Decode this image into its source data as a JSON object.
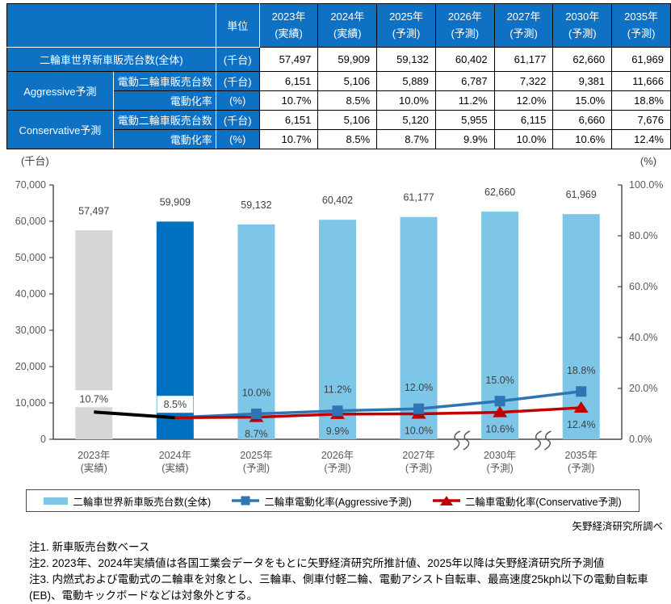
{
  "table": {
    "unit_header": "単位",
    "columns": [
      {
        "year": "2023年",
        "kind": "(実績)"
      },
      {
        "year": "2024年",
        "kind": "(実績)"
      },
      {
        "year": "2025年",
        "kind": "(予測)"
      },
      {
        "year": "2026年",
        "kind": "(予測)"
      },
      {
        "year": "2027年",
        "kind": "(予測)"
      },
      {
        "year": "2030年",
        "kind": "(予測)"
      },
      {
        "year": "2035年",
        "kind": "(予測)"
      }
    ],
    "total_row": {
      "label": "二輪車世界新車販売台数(全体)",
      "unit": "(千台)",
      "values": [
        "57,497",
        "59,909",
        "59,132",
        "60,402",
        "61,177",
        "62,660",
        "61,969"
      ]
    },
    "aggressive": {
      "group": "Aggressive予測",
      "sales": {
        "label": "電動二輪車販売台数",
        "unit": "(千台)",
        "values": [
          "6,151",
          "5,106",
          "5,889",
          "6,787",
          "7,322",
          "9,381",
          "11,666"
        ]
      },
      "rate": {
        "label": "電動化率",
        "unit": "(%)",
        "values": [
          "10.7%",
          "8.5%",
          "10.0%",
          "11.2%",
          "12.0%",
          "15.0%",
          "18.8%"
        ]
      }
    },
    "conservative": {
      "group": "Conservative予測",
      "sales": {
        "label": "電動二輪車販売台数",
        "unit": "(千台)",
        "values": [
          "6,151",
          "5,106",
          "5,120",
          "5,955",
          "6,115",
          "6,660",
          "7,676"
        ]
      },
      "rate": {
        "label": "電動化率",
        "unit": "(%)",
        "values": [
          "10.7%",
          "8.5%",
          "8.7%",
          "9.9%",
          "10.0%",
          "10.6%",
          "12.4%"
        ]
      }
    }
  },
  "chart_data": {
    "type": "bar+line",
    "x_labels": [
      [
        "2023年",
        "(実績)"
      ],
      [
        "2024年",
        "(実績)"
      ],
      [
        "2025年",
        "(予測)"
      ],
      [
        "2026年",
        "(予測)"
      ],
      [
        "2027年",
        "(予測)"
      ],
      [
        "2030年",
        "(予測)"
      ],
      [
        "2035年",
        "(予測)"
      ]
    ],
    "bar_series": {
      "name": "二輪車世界新車販売台数(全体)",
      "unit": "千台",
      "values": [
        57497,
        59909,
        59132,
        60402,
        61177,
        62660,
        61969
      ],
      "labels": [
        "57,497",
        "59,909",
        "59,132",
        "60,402",
        "61,177",
        "62,660",
        "61,969"
      ],
      "colors": [
        "#D6D6D6",
        "#0070C0",
        "#7EC6E8",
        "#7EC6E8",
        "#7EC6E8",
        "#7EC6E8",
        "#7EC6E8"
      ]
    },
    "line_series": [
      {
        "name": "二輪車電動化率(Aggressive予測)",
        "values": [
          10.7,
          8.5,
          10.0,
          11.2,
          12.0,
          15.0,
          18.8
        ],
        "labels": [
          "10.7%",
          "8.5%",
          "10.0%",
          "11.2%",
          "12.0%",
          "15.0%",
          "18.8%"
        ],
        "color": "#2E75B6",
        "marker": "square"
      },
      {
        "name": "二輪車電動化率(Conservative予測)",
        "values": [
          10.7,
          8.5,
          8.7,
          9.9,
          10.0,
          10.6,
          12.4
        ],
        "labels": [
          "10.7%",
          "8.5%",
          "8.7%",
          "9.9%",
          "10.0%",
          "10.6%",
          "12.4%"
        ],
        "color": "#C00000",
        "marker": "triangle"
      }
    ],
    "actual_segment": {
      "indices": [
        0,
        1
      ],
      "color": "#000000"
    },
    "boxed_label_indices": [
      0,
      1
    ],
    "left_axis": {
      "title": "(千台)",
      "min": 0,
      "max": 70000,
      "step": 10000,
      "tick_labels": [
        "0",
        "10,000",
        "20,000",
        "30,000",
        "40,000",
        "50,000",
        "60,000",
        "70,000"
      ]
    },
    "right_axis": {
      "title": "(%)",
      "min": 0,
      "max": 100,
      "step": 20,
      "tick_labels": [
        "0.0%",
        "20.0%",
        "40.0%",
        "60.0%",
        "80.0%",
        "100.0%"
      ]
    },
    "break_after_indices": [
      4,
      5
    ],
    "grid": false,
    "legend_position": "bottom"
  },
  "legend": {
    "items": [
      {
        "label": "二輪車世界新車販売台数(全体)",
        "swatch": "bar",
        "color": "#7EC6E8"
      },
      {
        "label": "二輪車電動化率(Aggressive予測)",
        "swatch": "line-square",
        "color": "#2E75B6"
      },
      {
        "label": "二輪車電動化率(Conservative予測)",
        "swatch": "line-triangle",
        "color": "#C00000"
      }
    ]
  },
  "source": "矢野経済研究所調べ",
  "notes": [
    "注1. 新車販売台数ベース",
    "注2. 2023年、2024年実績値は各国工業会データをもとに矢野経済研究所推計値、2025年以降は矢野経済研究所予測値",
    "注3. 内燃式および電動式の二輪車を対象とし、三輪車、側車付軽二輪、電動アシスト自転車、最高速度25kph以下の電動自転車",
    "(EB)、電動キックボードなどは対象外とする。"
  ],
  "colors": {
    "table_blue": "#0E71C4",
    "bar_actual_2023": "#D6D6D6",
    "bar_actual_2024": "#0070C0",
    "bar_forecast": "#7EC6E8",
    "line_aggressive": "#2E75B6",
    "line_conservative": "#C00000",
    "line_actual": "#000000"
  }
}
